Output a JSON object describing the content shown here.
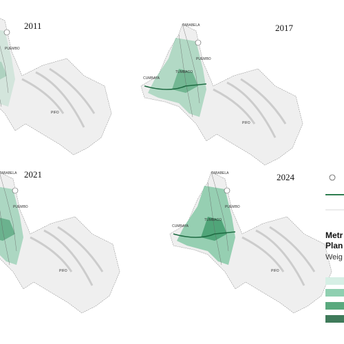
{
  "panels": [
    {
      "year": "2011",
      "places": [
        "PUEMBO",
        "PIFO"
      ]
    },
    {
      "year": "2017",
      "places": [
        "TABABELA",
        "PUEMBO",
        "TUMBACO",
        "CUMBAYA",
        "PIFO"
      ]
    },
    {
      "year": "2021",
      "places": [
        "TABABELA",
        "PUEMBO",
        "PIFO"
      ]
    },
    {
      "year": "2024",
      "places": [
        "TABABELA",
        "PUEMBO",
        "TUMBACO",
        "CUMBAYA",
        "PIFO"
      ]
    }
  ],
  "legend": {
    "title": [
      "Metr",
      "Plan"
    ],
    "subtitle": "Weig"
  }
}
